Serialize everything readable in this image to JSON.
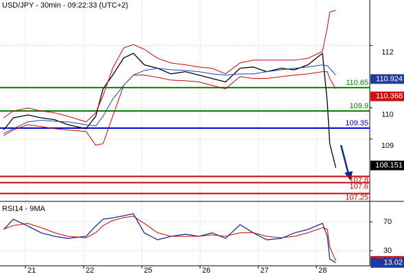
{
  "chart_data": [
    {
      "type": "line",
      "title": "USD/JPY - 30min - 09:22:33 (UTC+2)",
      "x": [
        3,
        11,
        23,
        34,
        45,
        56,
        71,
        79,
        85,
        93,
        102,
        110,
        119,
        130,
        141,
        153,
        164,
        175,
        186,
        198,
        209,
        220,
        232,
        243,
        254,
        266,
        270,
        272,
        277
      ],
      "xlim": [
        0,
        305
      ],
      "series": [
        {
          "color": "#000000",
          "values": [
            109.29,
            109.68,
            109.77,
            109.68,
            109.62,
            109.46,
            109.33,
            109.73,
            110.61,
            111.05,
            111.6,
            111.75,
            111.38,
            111.27,
            111.09,
            111.16,
            111.05,
            110.94,
            110.83,
            111.27,
            111.31,
            111.16,
            111.27,
            111.22,
            111.38,
            111.75,
            110.17,
            108.85,
            108.08
          ]
        },
        {
          "color": "#cc0000",
          "values": [
            109.68,
            109.9,
            109.99,
            109.9,
            109.84,
            109.73,
            109.55,
            109.84,
            110.39,
            111.27,
            111.92,
            112.03,
            111.88,
            111.59,
            111.44,
            111.38,
            111.31,
            111.27,
            111.09,
            111.44,
            111.53,
            111.53,
            111.53,
            111.53,
            111.59,
            111.81,
            112.58,
            113.07,
            113.13
          ]
        },
        {
          "color": "#cc0000",
          "values": [
            109.11,
            109.29,
            109.46,
            109.4,
            109.33,
            109.29,
            109.24,
            108.8,
            108.85,
            109.73,
            110.72,
            111.05,
            111.05,
            110.98,
            110.89,
            110.87,
            110.83,
            110.72,
            110.61,
            111.0,
            110.94,
            110.94,
            111.0,
            111.05,
            111.09,
            111.16,
            111.16,
            110.94,
            110.61
          ]
        },
        {
          "color": "#2040c0",
          "values": [
            109.18,
            109.33,
            109.55,
            109.6,
            109.57,
            109.55,
            109.46,
            109.42,
            109.73,
            110.28,
            110.72,
            111.05,
            111.2,
            111.27,
            111.22,
            111.2,
            111.16,
            111.09,
            111.05,
            111.09,
            111.09,
            111.16,
            111.22,
            111.27,
            111.31,
            111.38,
            111.35,
            111.27,
            111.05
          ]
        }
      ],
      "ylim": [
        107.02,
        113.46
      ],
      "yticks": [
        109,
        110,
        112
      ],
      "grid": true,
      "levels": [
        110.65,
        109.9,
        109.35,
        107.8,
        107.6,
        107.25
      ],
      "level_colors": [
        "#008000",
        "#008000",
        "#0000cc",
        "#cc0000",
        "#cc0000",
        "#cc0000"
      ],
      "price_boxes": [
        110.924,
        110.368,
        108.151
      ],
      "price_box_colors": [
        "#1f3a9c",
        "#cc1010",
        "#000000"
      ]
    },
    {
      "type": "line",
      "title": "RSI14 - 9MA",
      "x": [
        3,
        11,
        23,
        34,
        45,
        56,
        71,
        79,
        85,
        93,
        102,
        110,
        119,
        130,
        141,
        153,
        164,
        175,
        186,
        198,
        209,
        220,
        232,
        243,
        254,
        266,
        270,
        272,
        277
      ],
      "xlim": [
        0,
        305
      ],
      "xticks": [
        {
          "value": 21,
          "label": "21"
        },
        {
          "value": 69,
          "label": "22"
        },
        {
          "value": 117,
          "label": "25"
        },
        {
          "value": 165,
          "label": "26"
        },
        {
          "value": 213,
          "label": "27"
        },
        {
          "value": 261,
          "label": "28"
        }
      ],
      "series": [
        {
          "color": "#1a2f9a",
          "values": [
            59.5,
            73.8,
            64.3,
            54.8,
            50,
            47.1,
            50,
            64.3,
            73.8,
            75.7,
            78.6,
            81.4,
            54.8,
            45.2,
            50,
            52.9,
            50,
            54.8,
            47.1,
            66.2,
            54.8,
            45.2,
            47.1,
            54.8,
            59.5,
            68.1,
            50,
            18.6,
            13.02
          ]
        },
        {
          "color": "#cc0000",
          "values": [
            60,
            65,
            68,
            62,
            55,
            50,
            48,
            55,
            65,
            72,
            76,
            78,
            68,
            55,
            50,
            50,
            50,
            52,
            50,
            55,
            55,
            50,
            48,
            50,
            55,
            62,
            60,
            35,
            15.8507
          ]
        }
      ],
      "ylim": [
        0,
        100
      ],
      "yticks": [
        30,
        70
      ],
      "grid": true,
      "price_boxes": [
        15.8507,
        13.02
      ],
      "price_box_colors": [
        "#cc1010",
        "#1f3a9c"
      ]
    }
  ]
}
